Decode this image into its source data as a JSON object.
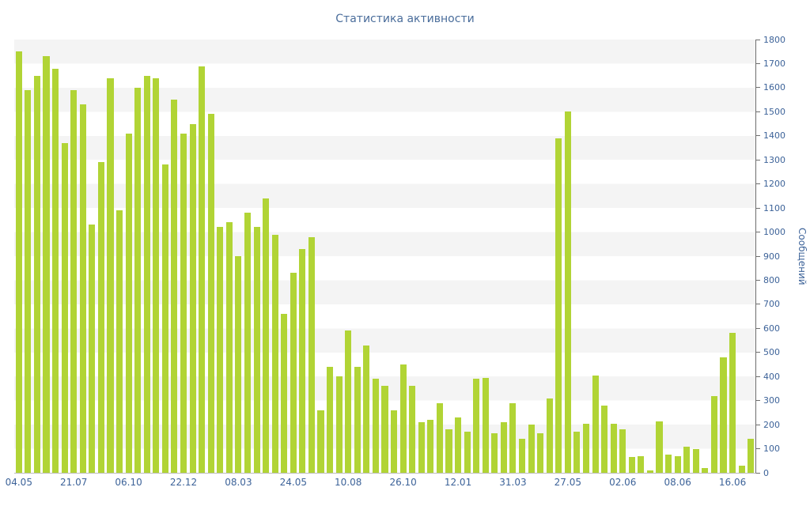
{
  "chart_data": {
    "type": "bar",
    "title": "Статистика активности",
    "ylabel": "Сообщений",
    "xlabel": "",
    "ylim": [
      0,
      1800
    ],
    "ytick_step": 100,
    "grid": "horizontal-bands",
    "legend": "none",
    "x_tick_labels": [
      "04.05",
      "21.07",
      "06.10",
      "22.12",
      "08.03",
      "24.05",
      "10.08",
      "26.10",
      "12.01",
      "31.03",
      "27.05",
      "02.06",
      "08.06",
      "16.06"
    ],
    "x_tick_start": 0,
    "x_tick_every": 6,
    "values": [
      1750,
      1590,
      1650,
      1730,
      1680,
      1370,
      1590,
      1530,
      1030,
      1290,
      1640,
      1090,
      1410,
      1600,
      1650,
      1640,
      1280,
      1550,
      1410,
      1450,
      1690,
      1490,
      1020,
      1040,
      900,
      1080,
      1020,
      1140,
      990,
      660,
      830,
      930,
      980,
      260,
      440,
      400,
      590,
      440,
      530,
      390,
      360,
      260,
      450,
      360,
      210,
      220,
      290,
      180,
      230,
      170,
      390,
      395,
      165,
      210,
      290,
      140,
      200,
      165,
      310,
      1390,
      1500,
      170,
      205,
      405,
      280,
      205,
      180,
      65,
      70,
      10,
      215,
      75,
      70,
      110,
      100,
      20,
      320,
      480,
      580,
      30,
      140
    ],
    "colors": {
      "bar": "#b1d435",
      "title": "#4a6d9b",
      "tick_label": "#3d6399",
      "axis": "#6e6e6e",
      "baseline": "#bdbdbd",
      "stripe": "#f4f4f4"
    }
  }
}
